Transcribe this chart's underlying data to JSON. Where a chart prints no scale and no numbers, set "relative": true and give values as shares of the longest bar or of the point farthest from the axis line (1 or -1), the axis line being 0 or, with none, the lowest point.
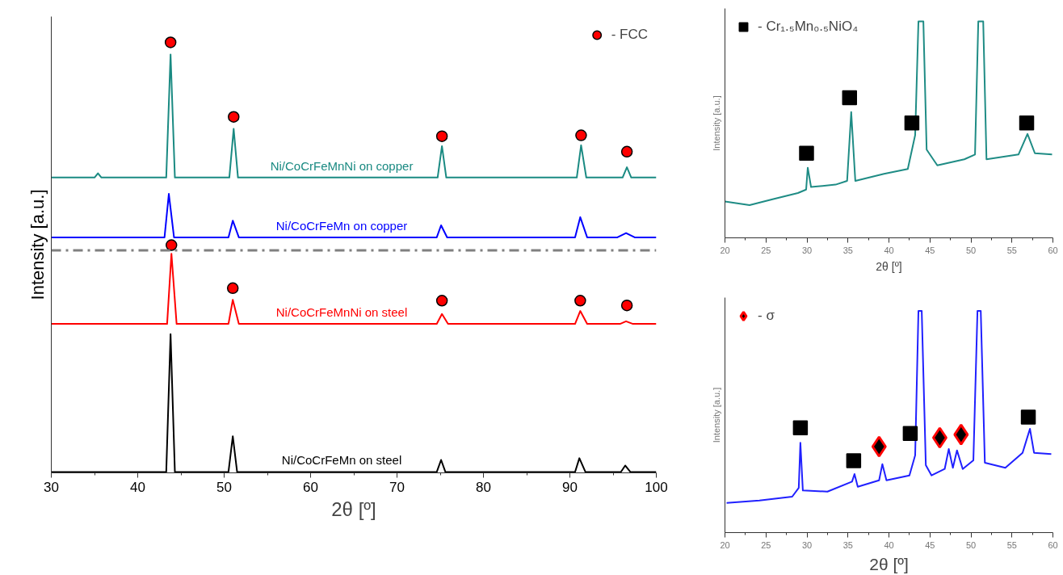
{
  "chart_data": [
    {
      "type": "line",
      "xlabel": "2θ [º]",
      "ylabel": "Intensity [a.u.]",
      "relative": true,
      "xlim": [
        30,
        100
      ],
      "xticks": [
        30,
        40,
        50,
        60,
        70,
        80,
        90,
        100
      ],
      "tick_labels": "x",
      "legend": "top right",
      "grid": false,
      "series": [
        {
          "name": "Ni/CoCrFeMnNi on copper",
          "color": "#1a8a82",
          "x": [
            30,
            35.0,
            35.4,
            35.8,
            43.3,
            43.8,
            44.3,
            50.6,
            51.1,
            51.6,
            74.7,
            75.2,
            75.7,
            90.8,
            91.3,
            91.9,
            96.1,
            96.6,
            97.1,
            100
          ],
          "values": [
            0.686,
            0.686,
            0.696,
            0.686,
            0.686,
            0.972,
            0.686,
            0.686,
            0.799,
            0.686,
            0.686,
            0.759,
            0.686,
            0.686,
            0.761,
            0.686,
            0.686,
            0.71,
            0.686,
            0.686
          ]
        },
        {
          "name": "Ni/CoCrFeMn on copper",
          "color": "#0000ff",
          "x": [
            30,
            43.1,
            43.6,
            44.2,
            50.5,
            51.0,
            51.7,
            74.6,
            75.1,
            75.8,
            90.6,
            91.2,
            92.0,
            95.5,
            96.5,
            97.5,
            100
          ],
          "values": [
            0.547,
            0.547,
            0.648,
            0.547,
            0.547,
            0.586,
            0.547,
            0.547,
            0.575,
            0.547,
            0.547,
            0.594,
            0.547,
            0.547,
            0.557,
            0.547,
            0.547
          ]
        },
        {
          "name": "Ni/CoCrFeMnNi on steel",
          "color": "#ff0000",
          "x": [
            30,
            43.4,
            43.9,
            44.5,
            50.5,
            51.0,
            51.7,
            74.6,
            75.2,
            75.9,
            90.6,
            91.2,
            92.0,
            95.8,
            96.5,
            97.3,
            100
          ],
          "values": [
            0.346,
            0.346,
            0.509,
            0.346,
            0.346,
            0.402,
            0.346,
            0.346,
            0.369,
            0.346,
            0.346,
            0.376,
            0.346,
            0.346,
            0.352,
            0.346,
            0.346
          ]
        },
        {
          "name": "Ni/CoCrFeMn on steel",
          "color": "#000000",
          "x": [
            30,
            43.3,
            43.8,
            44.3,
            50.5,
            51.0,
            51.5,
            74.6,
            75.1,
            75.6,
            90.6,
            91.1,
            91.8,
            95.9,
            96.4,
            97.0,
            100
          ],
          "values": [
            0.002,
            0.002,
            0.322,
            0.002,
            0.002,
            0.085,
            0.002,
            0.002,
            0.03,
            0.002,
            0.002,
            0.034,
            0.002,
            0.002,
            0.017,
            0.002,
            0.002
          ]
        },
        {
          "name": "- FCC",
          "type": "scatter",
          "color": "#ff0000",
          "marker": "circle",
          "x": [
            43.8,
            51.1,
            75.2,
            91.3,
            96.6,
            43.9,
            51.0,
            75.2,
            91.2,
            96.6
          ],
          "values": [
            1.0,
            0.827,
            0.782,
            0.784,
            0.746,
            0.529,
            0.429,
            0.4,
            0.4,
            0.389
          ]
        }
      ],
      "ref_lines": [
        {
          "axis": "y",
          "value": 0.517,
          "color": "#808080",
          "line_style": "dashed"
        }
      ]
    },
    {
      "type": "line",
      "xlabel": "2θ [º]",
      "ylabel": "Intensity [a.u.]",
      "relative": true,
      "xlim": [
        20,
        60
      ],
      "xticks": [
        20,
        25,
        30,
        35,
        40,
        45,
        50,
        55,
        60
      ],
      "tick_labels": "x",
      "legend": "top left",
      "grid": false,
      "series": [
        {
          "color": "#1f8c85",
          "x": [
            20.0,
            23.0,
            25.9,
            28.9,
            29.9,
            30.1,
            30.5,
            33.5,
            34.9,
            35.4,
            35.9,
            39.4,
            42.3,
            43.2,
            43.6,
            44.2,
            44.6,
            45.9,
            49.2,
            50.5,
            50.9,
            51.5,
            51.9,
            55.8,
            56.9,
            57.8,
            59.9
          ],
          "values": [
            0.168,
            0.151,
            0.179,
            0.207,
            0.223,
            0.324,
            0.235,
            0.246,
            0.263,
            0.581,
            0.263,
            0.296,
            0.318,
            0.475,
            1.0,
            1.0,
            0.408,
            0.335,
            0.363,
            0.385,
            1.0,
            1.0,
            0.363,
            0.385,
            0.48,
            0.391,
            0.385
          ]
        },
        {
          "name": "- Cr₁.₅Mn₀.₅NiO₄",
          "type": "scatter",
          "color": "#000000",
          "marker": "square",
          "x": [
            29.95,
            35.2,
            42.8,
            56.8
          ],
          "values": [
            0.391,
            0.648,
            0.531,
            0.531
          ]
        }
      ]
    },
    {
      "type": "line",
      "xlabel": "2θ [º]",
      "ylabel": "Intensity [a.u.]",
      "relative": true,
      "xlim": [
        20,
        60
      ],
      "xticks": [
        20,
        25,
        30,
        35,
        40,
        45,
        50,
        55,
        60
      ],
      "tick_labels": "x",
      "legend": "top left",
      "grid": false,
      "series": [
        {
          "color": "#2020ff",
          "x": [
            20.2,
            24.2,
            28.2,
            29.0,
            29.2,
            29.5,
            32.5,
            35.5,
            35.8,
            36.2,
            38.8,
            39.2,
            39.7,
            42.5,
            43.2,
            43.6,
            44.0,
            44.5,
            45.2,
            46.8,
            47.3,
            47.8,
            48.3,
            49.0,
            50.3,
            50.8,
            51.2,
            51.7,
            54.2,
            56.3,
            57.2,
            57.7,
            59.8
          ],
          "values": [
            0.134,
            0.145,
            0.162,
            0.202,
            0.405,
            0.19,
            0.185,
            0.23,
            0.264,
            0.207,
            0.236,
            0.309,
            0.236,
            0.258,
            0.349,
            1.0,
            1.0,
            0.304,
            0.258,
            0.287,
            0.377,
            0.292,
            0.371,
            0.287,
            0.326,
            1.0,
            1.0,
            0.315,
            0.292,
            0.36,
            0.468,
            0.36,
            0.354
          ]
        },
        {
          "type": "scatter",
          "color": "#000000",
          "marker": "square",
          "x": [
            29.2,
            35.7,
            42.6,
            57.0
          ],
          "values": [
            0.473,
            0.324,
            0.447,
            0.521
          ]
        },
        {
          "name": "- σ",
          "type": "scatter",
          "color": "#000000",
          "marker": "diamond",
          "x": [
            38.8,
            46.2,
            48.8
          ],
          "values": [
            0.388,
            0.428,
            0.442
          ]
        }
      ]
    }
  ]
}
